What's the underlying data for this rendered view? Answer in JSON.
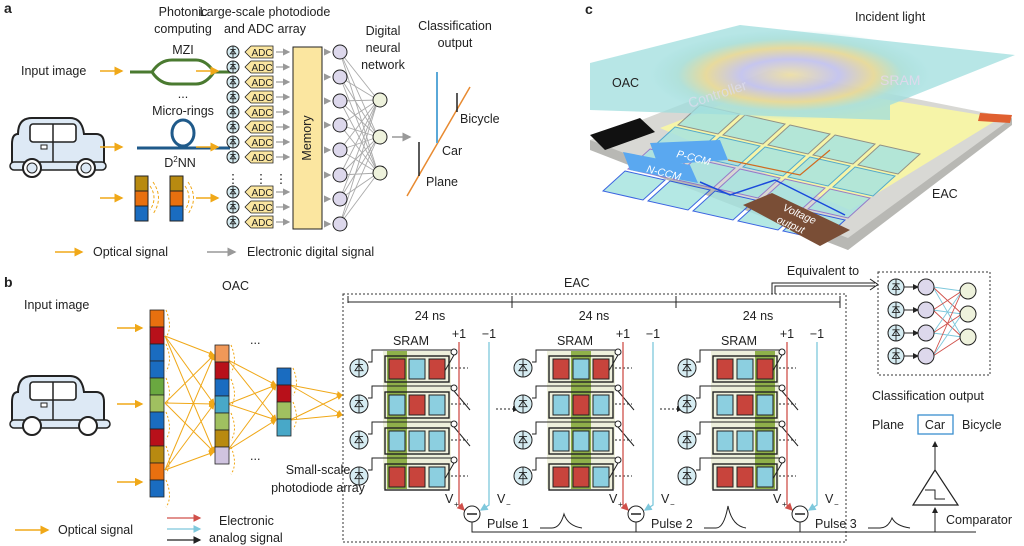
{
  "panel_a": {
    "label": "a",
    "photonic_title": [
      "Photonic",
      "computing"
    ],
    "array_title": [
      "Large-scale photodiode",
      "and ADC array"
    ],
    "dnn_title": [
      "Digital",
      "neural",
      "network"
    ],
    "output_title": [
      "Classification",
      "output"
    ],
    "input_image": "Input image",
    "mzi": "MZI",
    "dots": "...",
    "micro_rings": "Micro-rings",
    "d2nn_prefix": "D",
    "d2nn_sup": "2",
    "d2nn_suffix": "NN",
    "adc_label": "ADC",
    "memory": "Memory",
    "classes": [
      "Bicycle",
      "Car",
      "Plane"
    ],
    "legend_optical": "Optical signal",
    "legend_electronic": "Electronic digital signal"
  },
  "panel_b": {
    "label": "b",
    "input_image": "Input image",
    "oac": "OAC",
    "eac": "EAC",
    "dots": "...",
    "time_labels": [
      "24 ns",
      "24 ns",
      "24 ns"
    ],
    "sram": "SRAM",
    "plus_one": "+1",
    "minus_one": "−1",
    "v_plus": "V",
    "v_plus_sub": "+",
    "v_minus": "V",
    "v_minus_sub": "−",
    "pulses": [
      "Pulse 1",
      "Pulse 2",
      "Pulse 3"
    ],
    "small_scale": [
      "Small-scale",
      "photodiode array"
    ],
    "equivalent_to": "Equivalent to",
    "classification_output": "Classification output",
    "classes": [
      "Plane",
      "Car",
      "Bicycle"
    ],
    "selected_class": "Car",
    "comparator": "Comparator",
    "legend_optical": "Optical signal",
    "legend_electronic": [
      "Electronic",
      "analog signal"
    ],
    "sram_patterns": [
      [
        [
          "r",
          "c",
          "r"
        ],
        [
          "c",
          "r",
          "c"
        ],
        [
          "c",
          "c",
          "c"
        ],
        [
          "r",
          "r",
          "c"
        ]
      ]
    ],
    "highlighted_columns": [
      0,
      1,
      2
    ]
  },
  "panel_c": {
    "label": "c",
    "incident_light": "Incident light",
    "oac": "OAC",
    "eac": "EAC",
    "controller": "Controller",
    "sram": "SRAM",
    "p_ccm": "P-CCM",
    "n_ccm": "N-CCM",
    "voltage_output": [
      "Voltage",
      "output"
    ]
  },
  "colors": {
    "optical": "#f0a818",
    "electronic_digital": "#999999",
    "positive": "#d0504a",
    "negative": "#7ec8dc",
    "sram_red": "#c8443c",
    "sram_blue": "#8ccfe0",
    "memory": "#fbe6a0",
    "neuron": "#ddd8ec",
    "output_neuron": "#eef2dc",
    "car_body": "#dde9f5",
    "highlight_green": "#8fb04a"
  }
}
